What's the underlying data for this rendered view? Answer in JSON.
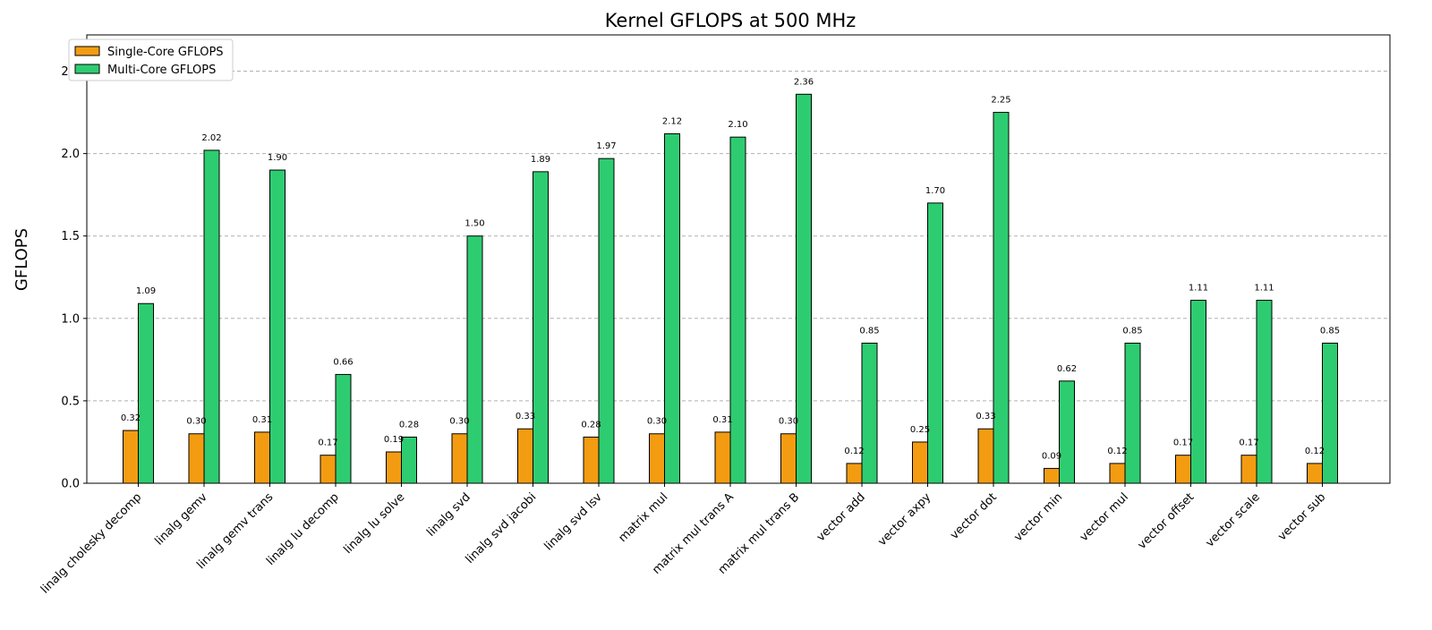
{
  "chart_data": {
    "type": "bar",
    "title": "Kernel GFLOPS at 500 MHz",
    "xlabel": "",
    "ylabel": "GFLOPS",
    "ylim": [
      0,
      2.72
    ],
    "yticks": [
      "0.0",
      "0.5",
      "1.0",
      "1.5",
      "2.0",
      "2.5"
    ],
    "grid": "horizontal dashed",
    "legend_position": "top-left",
    "categories": [
      "linalg cholesky decomp",
      "linalg gemv",
      "linalg gemv trans",
      "linalg lu decomp",
      "linalg lu solve",
      "linalg svd",
      "linalg svd jacobi",
      "linalg svd lsv",
      "matrix mul",
      "matrix mul trans A",
      "matrix mul trans B",
      "vector add",
      "vector axpy",
      "vector dot",
      "vector min",
      "vector mul",
      "vector offset",
      "vector scale",
      "vector sub"
    ],
    "series": [
      {
        "name": "Single-Core GFLOPS",
        "color": "#f39c12",
        "values": [
          0.32,
          0.3,
          0.31,
          0.17,
          0.19,
          0.3,
          0.33,
          0.28,
          0.3,
          0.31,
          0.3,
          0.12,
          0.25,
          0.33,
          0.09,
          0.12,
          0.17,
          0.17,
          0.12
        ],
        "labels": [
          "0.32",
          "0.30",
          "0.31",
          "0.17",
          "0.19",
          "0.30",
          "0.33",
          "0.28",
          "0.30",
          "0.31",
          "0.30",
          "0.12",
          "0.25",
          "0.33",
          "0.09",
          "0.12",
          "0.17",
          "0.17",
          "0.12"
        ]
      },
      {
        "name": "Multi-Core GFLOPS",
        "color": "#2ecc71",
        "values": [
          1.09,
          2.02,
          1.9,
          0.66,
          0.28,
          1.5,
          1.89,
          1.97,
          2.12,
          2.1,
          2.36,
          0.85,
          1.7,
          2.25,
          0.62,
          0.85,
          1.11,
          1.11,
          0.85
        ],
        "labels": [
          "1.09",
          "2.02",
          "1.90",
          "0.66",
          "0.28",
          "1.50",
          "1.89",
          "1.97",
          "2.12",
          "2.10",
          "2.36",
          "0.85",
          "1.70",
          "2.25",
          "0.62",
          "0.85",
          "1.11",
          "1.11",
          "0.85"
        ]
      }
    ]
  }
}
